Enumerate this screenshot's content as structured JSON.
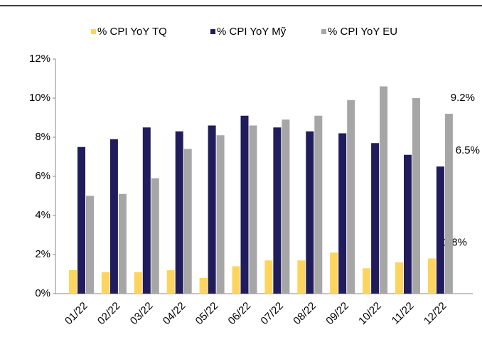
{
  "chart_data": {
    "type": "bar",
    "categories": [
      "01/22",
      "02/22",
      "03/22",
      "04/22",
      "05/22",
      "06/22",
      "07/22",
      "08/22",
      "09/22",
      "10/22",
      "11/22",
      "12/22"
    ],
    "series": [
      {
        "name": "% CPI YoY TQ",
        "color": "#fdd55e",
        "values": [
          1.2,
          1.1,
          1.1,
          1.2,
          0.8,
          1.4,
          1.7,
          1.7,
          2.1,
          1.3,
          1.6,
          1.8
        ],
        "value_labels": [
          null,
          null,
          null,
          null,
          null,
          null,
          null,
          null,
          null,
          null,
          null,
          "1.8%"
        ]
      },
      {
        "name": "% CPI YoY Mỹ",
        "color": "#211c5c",
        "values": [
          7.5,
          7.9,
          8.5,
          8.3,
          8.6,
          9.1,
          8.5,
          8.3,
          8.2,
          7.7,
          7.1,
          6.5
        ],
        "value_labels": [
          null,
          null,
          null,
          null,
          null,
          null,
          null,
          null,
          null,
          null,
          null,
          "6.5%"
        ]
      },
      {
        "name": "% CPI YoY EU",
        "color": "#a6a6a6",
        "values": [
          5.0,
          5.1,
          5.9,
          7.4,
          8.1,
          8.6,
          8.9,
          9.1,
          9.9,
          10.6,
          10.0,
          9.2
        ],
        "value_labels": [
          null,
          null,
          null,
          null,
          null,
          null,
          null,
          null,
          null,
          null,
          null,
          "9.2%"
        ]
      }
    ],
    "ylim": [
      0,
      12
    ],
    "yticks": [
      {
        "value": 0,
        "label": "0%"
      },
      {
        "value": 2,
        "label": "2%"
      },
      {
        "value": 4,
        "label": "4%"
      },
      {
        "value": 6,
        "label": "6%"
      },
      {
        "value": 8,
        "label": "8%"
      },
      {
        "value": 10,
        "label": "10%"
      },
      {
        "value": 12,
        "label": "12%"
      }
    ],
    "legend": "top",
    "grid": false
  }
}
